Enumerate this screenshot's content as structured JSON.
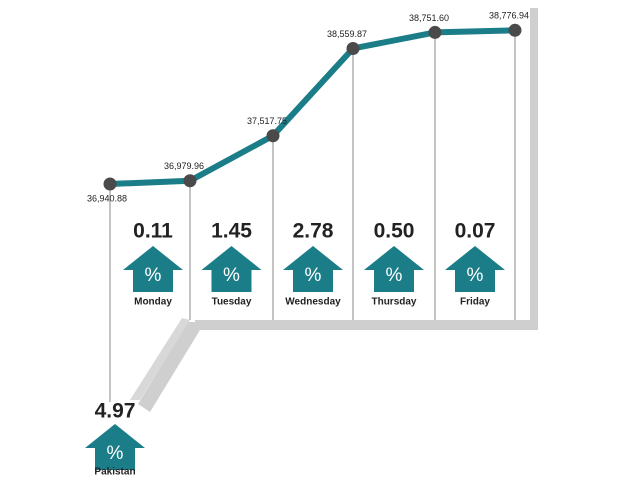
{
  "chart_data": {
    "type": "line",
    "categories": [
      null,
      "Monday",
      "Tuesday",
      "Wednesday",
      "Thursday",
      "Friday"
    ],
    "values": [
      36940.88,
      36979.96,
      37517.75,
      38559.87,
      38751.6,
      38776.94
    ],
    "value_labels": [
      "36,940.88",
      "36,979.96",
      "37,517.75",
      "38,559.87",
      "38,751.60",
      "38,776.94"
    ],
    "color": "#1b7d88",
    "ylim": [
      36750,
      38900
    ],
    "changes": {
      "values": [
        0.11,
        1.45,
        2.78,
        0.5,
        0.07
      ],
      "value_labels": [
        "0.11",
        "1.45",
        "2.78",
        "0.50",
        "0.07"
      ]
    },
    "pakistan": {
      "label": "Pakistan",
      "value": 4.97
    },
    "symbol": "%"
  }
}
